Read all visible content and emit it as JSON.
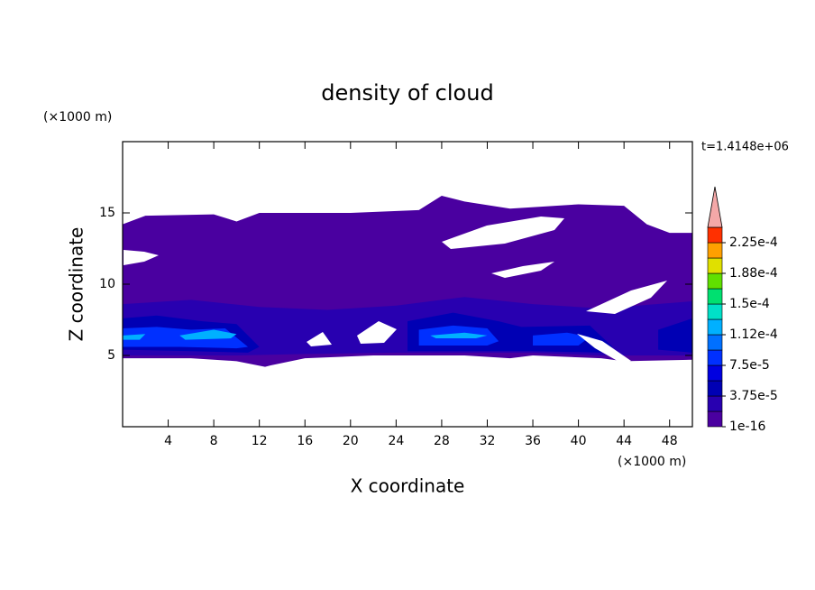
{
  "chart_data": {
    "type": "contour",
    "title": "density of cloud",
    "xlabel": "X coordinate",
    "ylabel": "Z coordinate",
    "xunit": "(×1000 m)",
    "yunit": "(×1000 m)",
    "time_label": "t=1.4148e+06",
    "xlim": [
      0,
      50
    ],
    "ylim": [
      0,
      20
    ],
    "xticks": [
      4,
      8,
      12,
      16,
      20,
      24,
      28,
      32,
      36,
      40,
      44,
      48
    ],
    "yticks": [
      5,
      10,
      15
    ],
    "clim": [
      0,
      0.00024375
    ],
    "colors": [
      "#4a00a0",
      "#2800b0",
      "#0000b4",
      "#0000e0",
      "#0030ff",
      "#0070ff",
      "#00b0ff",
      "#00e0c8",
      "#00e070",
      "#60e000",
      "#e0e000",
      "#ffa000",
      "#ff3000"
    ],
    "over_color": "#f4a8a8",
    "cticks": [
      {
        "value": 1e-16,
        "label": "1e-16"
      },
      {
        "value": 3.75e-05,
        "label": "3.75e-5"
      },
      {
        "value": 7.5e-05,
        "label": "7.5e-5"
      },
      {
        "value": 0.0001125,
        "label": "1.12e-4"
      },
      {
        "value": 0.00015,
        "label": "1.5e-4"
      },
      {
        "value": 0.0001875,
        "label": "1.88e-4"
      },
      {
        "value": 0.000225,
        "label": "2.25e-4"
      }
    ],
    "regions": [
      {
        "value": 1e-16,
        "x": [
          0,
          2,
          8,
          10,
          12,
          20,
          26,
          28,
          30,
          34,
          40,
          44,
          46,
          48,
          50,
          50,
          44,
          42,
          36,
          34,
          30,
          26,
          22,
          16,
          13,
          12.5,
          10,
          6,
          0
        ],
        "z": [
          14.2,
          14.8,
          14.9,
          14.4,
          15,
          15,
          15.2,
          16.2,
          15.8,
          15.3,
          15.6,
          15.5,
          14.2,
          13.6,
          13.6,
          4.7,
          4.6,
          4.8,
          5,
          4.8,
          5,
          5,
          5,
          4.8,
          4.3,
          4.2,
          4.6,
          4.8,
          4.8
        ]
      },
      {
        "value": 2e-05,
        "x": [
          0,
          6,
          12,
          18,
          24,
          30,
          36,
          42,
          50,
          50,
          42,
          36,
          30,
          24,
          16,
          10,
          0
        ],
        "z": [
          8.6,
          8.9,
          8.4,
          8.2,
          8.5,
          9.1,
          8.6,
          8.3,
          8.8,
          5,
          5,
          5.2,
          5.2,
          5.2,
          5.1,
          5,
          5
        ]
      },
      {
        "value": 4e-05,
        "x": [
          0,
          3,
          7,
          10,
          12,
          11,
          6,
          0
        ],
        "z": [
          7.6,
          7.8,
          7.4,
          7.2,
          5.6,
          5.2,
          5.3,
          5.4
        ]
      },
      {
        "value": 4e-05,
        "x": [
          25,
          29,
          33,
          35,
          41,
          43,
          42,
          36,
          33,
          25
        ],
        "z": [
          7.4,
          8,
          7.4,
          7,
          7.1,
          5.6,
          5.2,
          5.3,
          5.3,
          5.3
        ]
      },
      {
        "value": 4e-05,
        "x": [
          47,
          50,
          50,
          47
        ],
        "z": [
          6.8,
          7.6,
          5.2,
          5.4
        ]
      },
      {
        "value": 8e-05,
        "x": [
          0,
          3,
          6,
          9,
          11,
          10,
          5,
          0
        ],
        "z": [
          6.9,
          7,
          6.8,
          6.9,
          5.6,
          5.5,
          5.6,
          5.6
        ]
      },
      {
        "value": 8e-05,
        "x": [
          26,
          29,
          32,
          33,
          32,
          26
        ],
        "z": [
          6.8,
          7.1,
          6.9,
          6,
          5.7,
          5.7
        ]
      },
      {
        "value": 8e-05,
        "x": [
          36,
          39,
          41,
          40,
          36
        ],
        "z": [
          6.4,
          6.6,
          6.3,
          5.7,
          5.7
        ]
      },
      {
        "value": 0.00012,
        "x": [
          5,
          8,
          10,
          9.5,
          5.5
        ],
        "z": [
          6.4,
          6.8,
          6.5,
          6.2,
          6.1
        ]
      },
      {
        "value": 0.00012,
        "x": [
          27,
          30,
          32,
          31,
          27.5
        ],
        "z": [
          6.4,
          6.6,
          6.4,
          6.2,
          6.2
        ]
      },
      {
        "value": 0.00012,
        "x": [
          0,
          2,
          1.5,
          0
        ],
        "z": [
          6.4,
          6.5,
          6.1,
          6.1
        ]
      }
    ]
  }
}
